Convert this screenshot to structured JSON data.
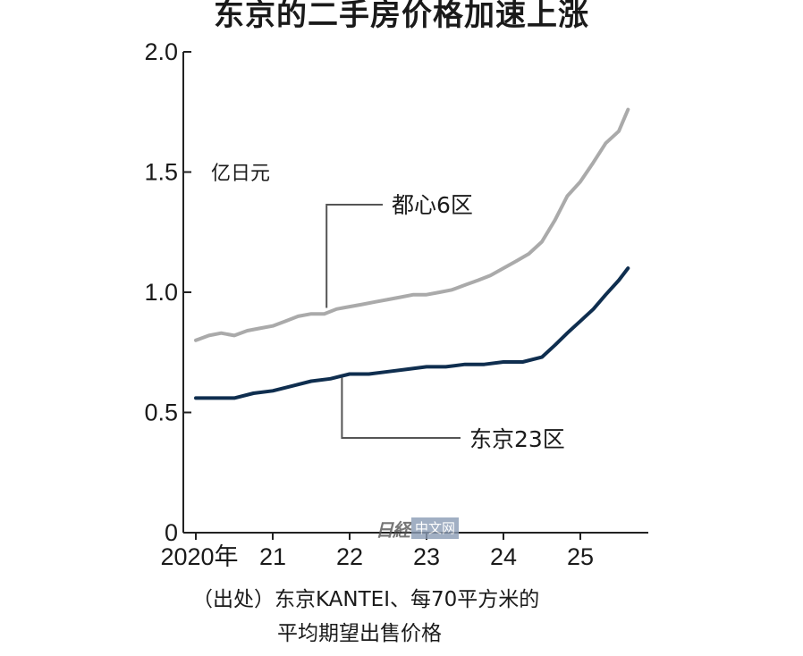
{
  "chart_data": {
    "type": "line",
    "title": "东京的二手房价格加速上涨",
    "unit": "亿日元",
    "x_tick_labels": [
      "2020年",
      "21",
      "22",
      "23",
      "24",
      "25"
    ],
    "y_tick_labels": [
      "2.0",
      "1.5",
      "1.0",
      "0.5",
      "0"
    ],
    "ylim": [
      0,
      2.0
    ],
    "xlim": [
      2020,
      2025.75
    ],
    "grid": false,
    "colors": {
      "都心6区": "#aaaaaa",
      "东京23区": "#0f2e4f"
    },
    "series": [
      {
        "name": "都心6区",
        "x": [
          2020.0,
          2020.17,
          2020.33,
          2020.5,
          2020.67,
          2020.83,
          2021.0,
          2021.17,
          2021.33,
          2021.5,
          2021.67,
          2021.83,
          2022.0,
          2022.17,
          2022.33,
          2022.5,
          2022.67,
          2022.83,
          2023.0,
          2023.17,
          2023.33,
          2023.5,
          2023.67,
          2023.83,
          2024.0,
          2024.17,
          2024.33,
          2024.5,
          2024.67,
          2024.83,
          2025.0,
          2025.17,
          2025.33,
          2025.5,
          2025.62
        ],
        "y": [
          0.8,
          0.82,
          0.83,
          0.82,
          0.84,
          0.85,
          0.86,
          0.88,
          0.9,
          0.91,
          0.91,
          0.93,
          0.94,
          0.95,
          0.96,
          0.97,
          0.98,
          0.99,
          0.99,
          1.0,
          1.01,
          1.03,
          1.05,
          1.07,
          1.1,
          1.13,
          1.16,
          1.21,
          1.3,
          1.4,
          1.46,
          1.54,
          1.62,
          1.67,
          1.76
        ]
      },
      {
        "name": "东京23区",
        "x": [
          2020.0,
          2020.25,
          2020.5,
          2020.75,
          2021.0,
          2021.25,
          2021.5,
          2021.75,
          2022.0,
          2022.25,
          2022.5,
          2022.75,
          2023.0,
          2023.25,
          2023.5,
          2023.75,
          2024.0,
          2024.25,
          2024.5,
          2024.67,
          2024.83,
          2025.0,
          2025.17,
          2025.33,
          2025.5,
          2025.62
        ],
        "y": [
          0.56,
          0.56,
          0.56,
          0.58,
          0.59,
          0.61,
          0.63,
          0.64,
          0.66,
          0.66,
          0.67,
          0.68,
          0.69,
          0.69,
          0.7,
          0.7,
          0.71,
          0.71,
          0.73,
          0.78,
          0.83,
          0.88,
          0.93,
          0.99,
          1.05,
          1.1
        ]
      }
    ]
  },
  "source_note": {
    "line1": "（出处）东京KANTEI、每70平方米的",
    "line2": "平均期望出售价格"
  },
  "watermark": {
    "logo": "日経",
    "text": "中文网"
  }
}
